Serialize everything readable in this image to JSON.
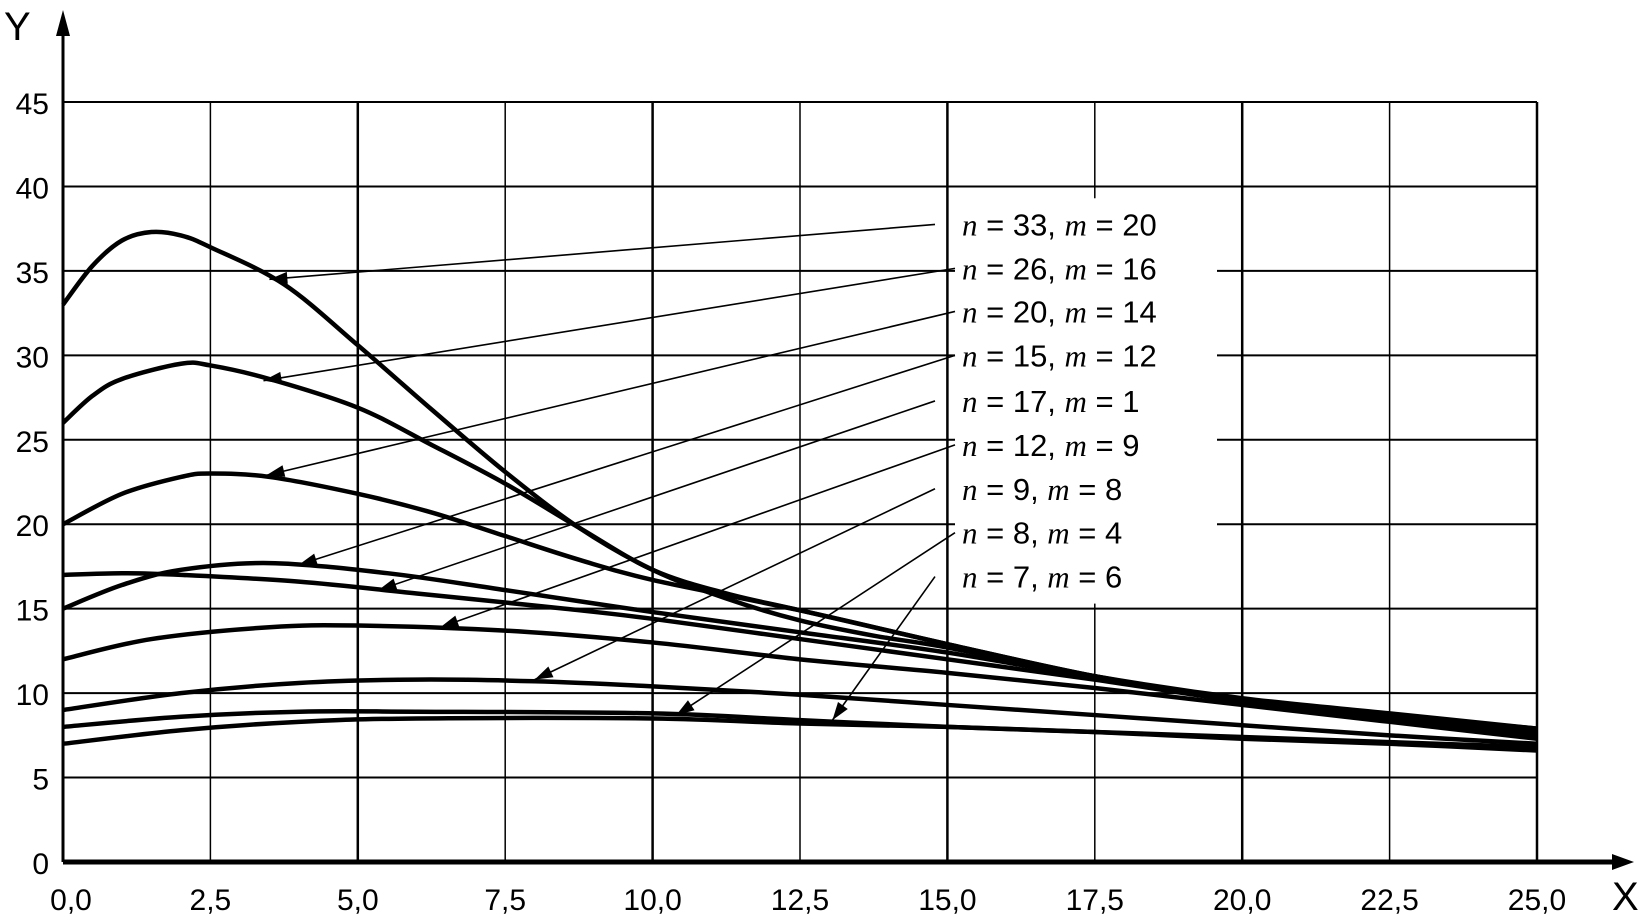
{
  "chart_data": {
    "type": "line",
    "title": "",
    "xlabel": "X",
    "ylabel": "Y",
    "xlim": [
      0,
      25
    ],
    "ylim": [
      0,
      45
    ],
    "grid": true,
    "x_ticks": [
      "0,0",
      "2,5",
      "5,0",
      "7,5",
      "10,0",
      "12,5",
      "15,0",
      "17,5",
      "20,0",
      "22,5",
      "25,0"
    ],
    "y_ticks": [
      "0",
      "5",
      "10",
      "15",
      "20",
      "25",
      "30",
      "35",
      "40",
      "45"
    ],
    "x_tick_values": [
      0,
      2.5,
      5,
      7.5,
      10,
      12.5,
      15,
      17.5,
      20,
      22.5,
      25
    ],
    "y_tick_values": [
      0,
      5,
      10,
      15,
      20,
      25,
      30,
      35,
      40,
      45
    ],
    "series": [
      {
        "name": "n = 33, m = 20",
        "n": "33",
        "m": "20",
        "x": [
          0,
          0.5,
          1,
          1.5,
          2,
          2.5,
          3.75,
          5,
          6.25,
          7.5,
          8.75,
          10,
          11.25,
          12.5,
          13.75,
          15,
          17.5,
          20,
          22.5,
          25
        ],
        "y": [
          33,
          35.3,
          36.8,
          37.3,
          37.1,
          36.4,
          34.2,
          30.6,
          26.8,
          23.1,
          19.8,
          17.3,
          15.6,
          14.3,
          13.4,
          12.7,
          11.0,
          9.7,
          8.8,
          7.9
        ],
        "label_y": 37.75,
        "arrow_to": [
          3.5,
          34.5
        ]
      },
      {
        "name": "n = 26, m = 16",
        "n": "26",
        "m": "16",
        "x": [
          0,
          0.5,
          1,
          2,
          2.5,
          3.5,
          5,
          6.25,
          7.5,
          8.75,
          10,
          11.25,
          12.5,
          15,
          17.5,
          20,
          22.5,
          25
        ],
        "y": [
          26,
          27.6,
          28.6,
          29.5,
          29.4,
          28.6,
          26.9,
          24.7,
          22.4,
          19.8,
          17.3,
          15.9,
          14.9,
          12.9,
          11.0,
          9.6,
          8.7,
          7.9
        ],
        "label_y": 35.15,
        "arrow_to": [
          3.4,
          28.5
        ]
      },
      {
        "name": "n = 20, m = 14",
        "n": "20",
        "m": "14",
        "x": [
          0,
          1,
          2,
          2.5,
          3.5,
          5,
          6.25,
          7.5,
          8.75,
          10,
          12.5,
          15,
          17.5,
          20,
          22.5,
          25
        ],
        "y": [
          20,
          21.8,
          22.8,
          23.0,
          22.8,
          21.8,
          20.7,
          19.3,
          17.9,
          16.7,
          14.9,
          12.9,
          11.0,
          9.5,
          8.6,
          7.8
        ],
        "label_y": 32.6,
        "arrow_to": [
          3.45,
          22.9
        ]
      },
      {
        "name": "n = 15, m = 12",
        "n": "15",
        "m": "12",
        "x": [
          0,
          1,
          2,
          3.5,
          5.5,
          7.5,
          10,
          12.5,
          15,
          17.5,
          20,
          22.5,
          25
        ],
        "y": [
          15,
          16.4,
          17.3,
          17.7,
          17.1,
          16.1,
          14.8,
          13.6,
          12.4,
          10.9,
          9.5,
          8.5,
          7.6
        ],
        "label_y": 30.0,
        "arrow_to": [
          4.0,
          17.6
        ]
      },
      {
        "name": "n = 17, m = 1",
        "n": "17",
        "m": "1",
        "x": [
          0,
          1,
          2,
          4,
          6,
          8.5,
          10,
          12.5,
          15,
          17.5,
          20,
          22.5,
          25
        ],
        "y": [
          17,
          17.1,
          17.0,
          16.6,
          15.9,
          15.0,
          14.4,
          13.2,
          12.0,
          10.8,
          9.5,
          8.5,
          7.5
        ],
        "label_y": 27.3,
        "arrow_to": [
          5.35,
          16.1
        ]
      },
      {
        "name": "n = 12, m = 9",
        "n": "12",
        "m": "9",
        "x": [
          0,
          1.5,
          3.5,
          5,
          7.5,
          10,
          12.5,
          15,
          17.5,
          20,
          22.5,
          25
        ],
        "y": [
          12,
          13.2,
          13.9,
          14.0,
          13.7,
          13.0,
          12.0,
          11.2,
          10.3,
          9.3,
          8.3,
          7.3
        ],
        "label_y": 24.7,
        "arrow_to": [
          6.4,
          13.9
        ]
      },
      {
        "name": "n = 9, m = 8",
        "n": "9",
        "m": "8",
        "x": [
          0,
          2,
          4,
          6,
          8,
          10,
          12.5,
          15,
          17.5,
          20,
          22.5,
          25
        ],
        "y": [
          9,
          10.0,
          10.6,
          10.8,
          10.7,
          10.4,
          9.9,
          9.3,
          8.7,
          8.1,
          7.5,
          7.0
        ],
        "label_y": 22.1,
        "arrow_to": [
          8.0,
          10.8
        ]
      },
      {
        "name": "n = 8, m = 4",
        "n": "8",
        "m": "4",
        "x": [
          0,
          2,
          4,
          6,
          10,
          12.5,
          15,
          17.5,
          20,
          22.5,
          25
        ],
        "y": [
          8,
          8.6,
          8.9,
          8.9,
          8.8,
          8.4,
          8.0,
          7.7,
          7.4,
          7.1,
          6.8
        ],
        "label_y": 19.5,
        "arrow_to": [
          10.4,
          8.7
        ]
      },
      {
        "name": "n = 7, m = 6",
        "n": "7",
        "m": "6",
        "x": [
          0,
          2,
          4,
          6,
          10,
          12.5,
          15,
          17.5,
          20,
          22.5,
          25
        ],
        "y": [
          7,
          7.8,
          8.3,
          8.5,
          8.5,
          8.2,
          8.0,
          7.7,
          7.3,
          7.0,
          6.6
        ],
        "label_y": 16.9,
        "arrow_to": [
          13.05,
          8.4
        ]
      }
    ],
    "label_tokens": {
      "n": "n",
      "m": "m",
      "eq": " = ",
      "sep": ", "
    }
  }
}
